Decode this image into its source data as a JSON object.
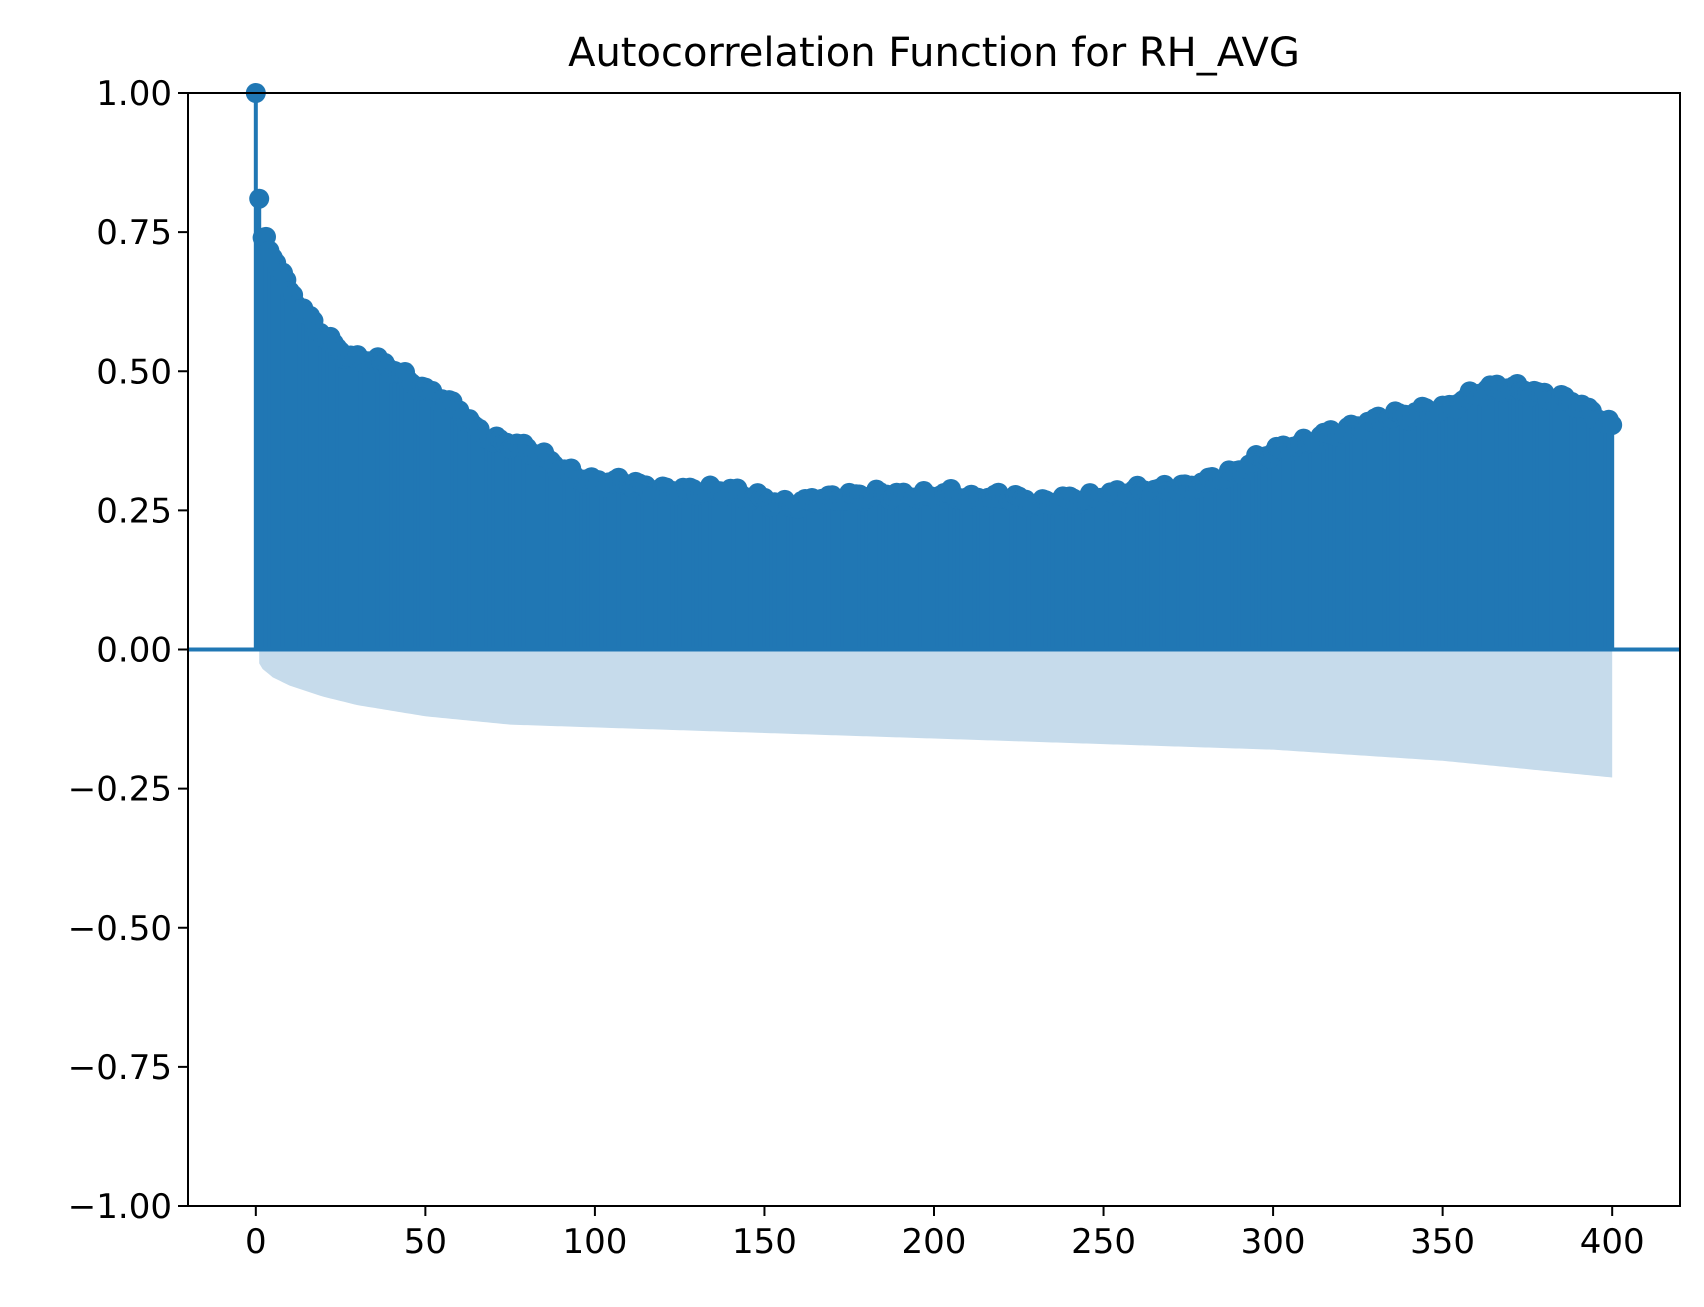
{
  "chart_data": {
    "type": "stem",
    "title": "Autocorrelation Function for RH_AVG",
    "xlabel": "",
    "ylabel": "",
    "xlim": [
      -20,
      420
    ],
    "ylim": [
      -1.0,
      1.0
    ],
    "x_ticks": [
      0,
      50,
      100,
      150,
      200,
      250,
      300,
      350,
      400
    ],
    "x_tick_labels": [
      "0",
      "50",
      "100",
      "150",
      "200",
      "250",
      "300",
      "350",
      "400"
    ],
    "y_ticks": [
      1.0,
      0.75,
      0.5,
      0.25,
      0.0,
      -0.25,
      -0.5,
      -0.75,
      -1.0
    ],
    "y_tick_labels": [
      "1.00",
      "0.75",
      "0.50",
      "0.25",
      "0.00",
      "−0.25",
      "−0.50",
      "−0.75",
      "−1.00"
    ],
    "grid": false,
    "legend": "none",
    "max_lag": 400,
    "acf_knots": {
      "lags": [
        0,
        1,
        2,
        3,
        5,
        8,
        10,
        15,
        20,
        25,
        30,
        35,
        40,
        45,
        50,
        55,
        60,
        65,
        70,
        75,
        80,
        85,
        90,
        95,
        100,
        105,
        110,
        115,
        120,
        125,
        130,
        135,
        140,
        145,
        150,
        155,
        160,
        165,
        170,
        175,
        180,
        185,
        190,
        195,
        200,
        205,
        210,
        215,
        220,
        225,
        230,
        235,
        240,
        245,
        250,
        255,
        260,
        265,
        270,
        275,
        280,
        285,
        290,
        295,
        300,
        305,
        310,
        315,
        320,
        325,
        330,
        335,
        340,
        345,
        350,
        355,
        360,
        365,
        370,
        375,
        380,
        385,
        390,
        395,
        400
      ],
      "values": [
        1.0,
        0.81,
        0.74,
        0.735,
        0.71,
        0.67,
        0.645,
        0.6,
        0.565,
        0.535,
        0.52,
        0.52,
        0.505,
        0.485,
        0.465,
        0.45,
        0.43,
        0.395,
        0.375,
        0.37,
        0.36,
        0.345,
        0.325,
        0.31,
        0.3,
        0.3,
        0.3,
        0.29,
        0.285,
        0.285,
        0.285,
        0.285,
        0.285,
        0.275,
        0.27,
        0.26,
        0.26,
        0.27,
        0.27,
        0.275,
        0.275,
        0.28,
        0.275,
        0.275,
        0.275,
        0.28,
        0.27,
        0.27,
        0.275,
        0.27,
        0.26,
        0.265,
        0.27,
        0.27,
        0.275,
        0.28,
        0.285,
        0.285,
        0.29,
        0.29,
        0.3,
        0.31,
        0.32,
        0.34,
        0.355,
        0.365,
        0.37,
        0.385,
        0.39,
        0.4,
        0.41,
        0.42,
        0.42,
        0.43,
        0.43,
        0.445,
        0.46,
        0.47,
        0.47,
        0.465,
        0.455,
        0.45,
        0.44,
        0.42,
        0.4
      ]
    },
    "confidence_band": {
      "lags": [
        1,
        2,
        5,
        10,
        20,
        30,
        50,
        75,
        100,
        150,
        200,
        250,
        300,
        350,
        400
      ],
      "half_width": [
        0.025,
        0.035,
        0.05,
        0.065,
        0.085,
        0.1,
        0.12,
        0.135,
        0.14,
        0.15,
        0.16,
        0.17,
        0.18,
        0.2,
        0.23
      ]
    },
    "colors": {
      "stem": "#2077b4",
      "band": "#c6dbeb",
      "axes": "#000000",
      "background": "#ffffff"
    }
  }
}
